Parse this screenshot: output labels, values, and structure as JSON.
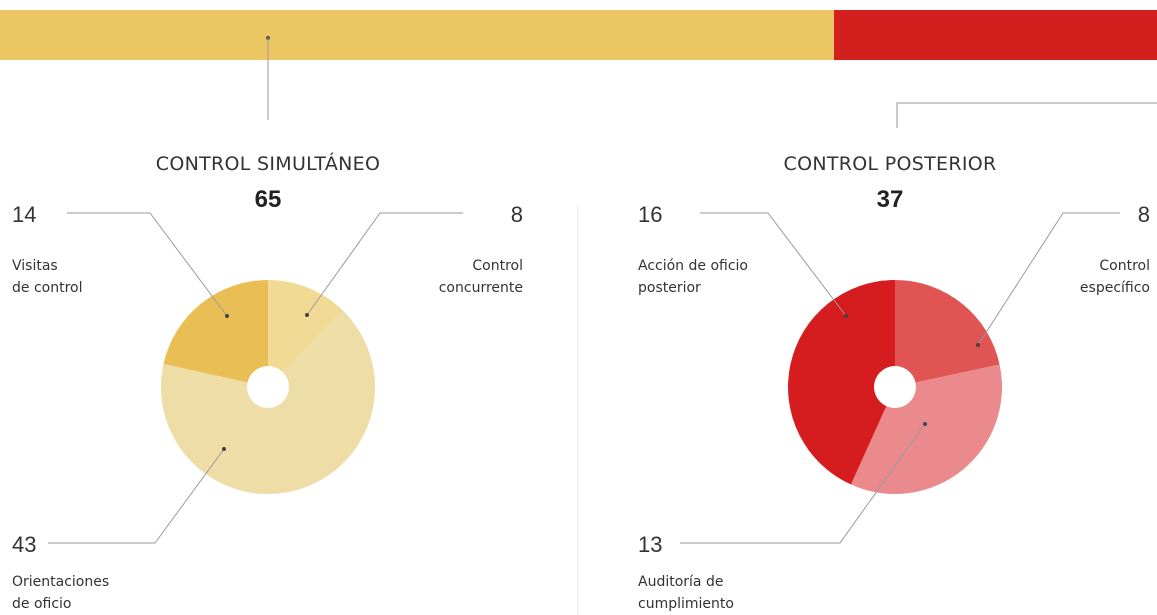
{
  "colors": {
    "simultaneo_bar": "#ECC663",
    "posterior_bar": "#D41F1F",
    "leader": "#9a9a9a",
    "divider": "#e6e6e6"
  },
  "chart_data": [
    {
      "type": "pie",
      "title": "CONTROL SIMULTÁNEO",
      "total": "65",
      "slices": [
        {
          "value": 8,
          "number": "8",
          "label": [
            "Control",
            "concurrente"
          ],
          "color": "#F1DA93"
        },
        {
          "value": 43,
          "number": "43",
          "label": [
            "Orientaciones",
            "de oficio"
          ],
          "color": "#EEDDA6"
        },
        {
          "value": 14,
          "number": "14",
          "label": [
            "Visitas",
            "de control"
          ],
          "color": "#E9BF55"
        }
      ]
    },
    {
      "type": "pie",
      "title": "CONTROL POSTERIOR",
      "total": "37",
      "slices": [
        {
          "value": 8,
          "number": "8",
          "label": [
            "Control",
            "específico"
          ],
          "color": "#E05454"
        },
        {
          "value": 13,
          "number": "13",
          "label": [
            "Auditoría de",
            "cumplimiento"
          ],
          "color": "#EA8A8C"
        },
        {
          "value": 16,
          "number": "16",
          "label": [
            "Acción de oficio",
            "posterior"
          ],
          "color": "#D51C1F"
        }
      ]
    }
  ]
}
